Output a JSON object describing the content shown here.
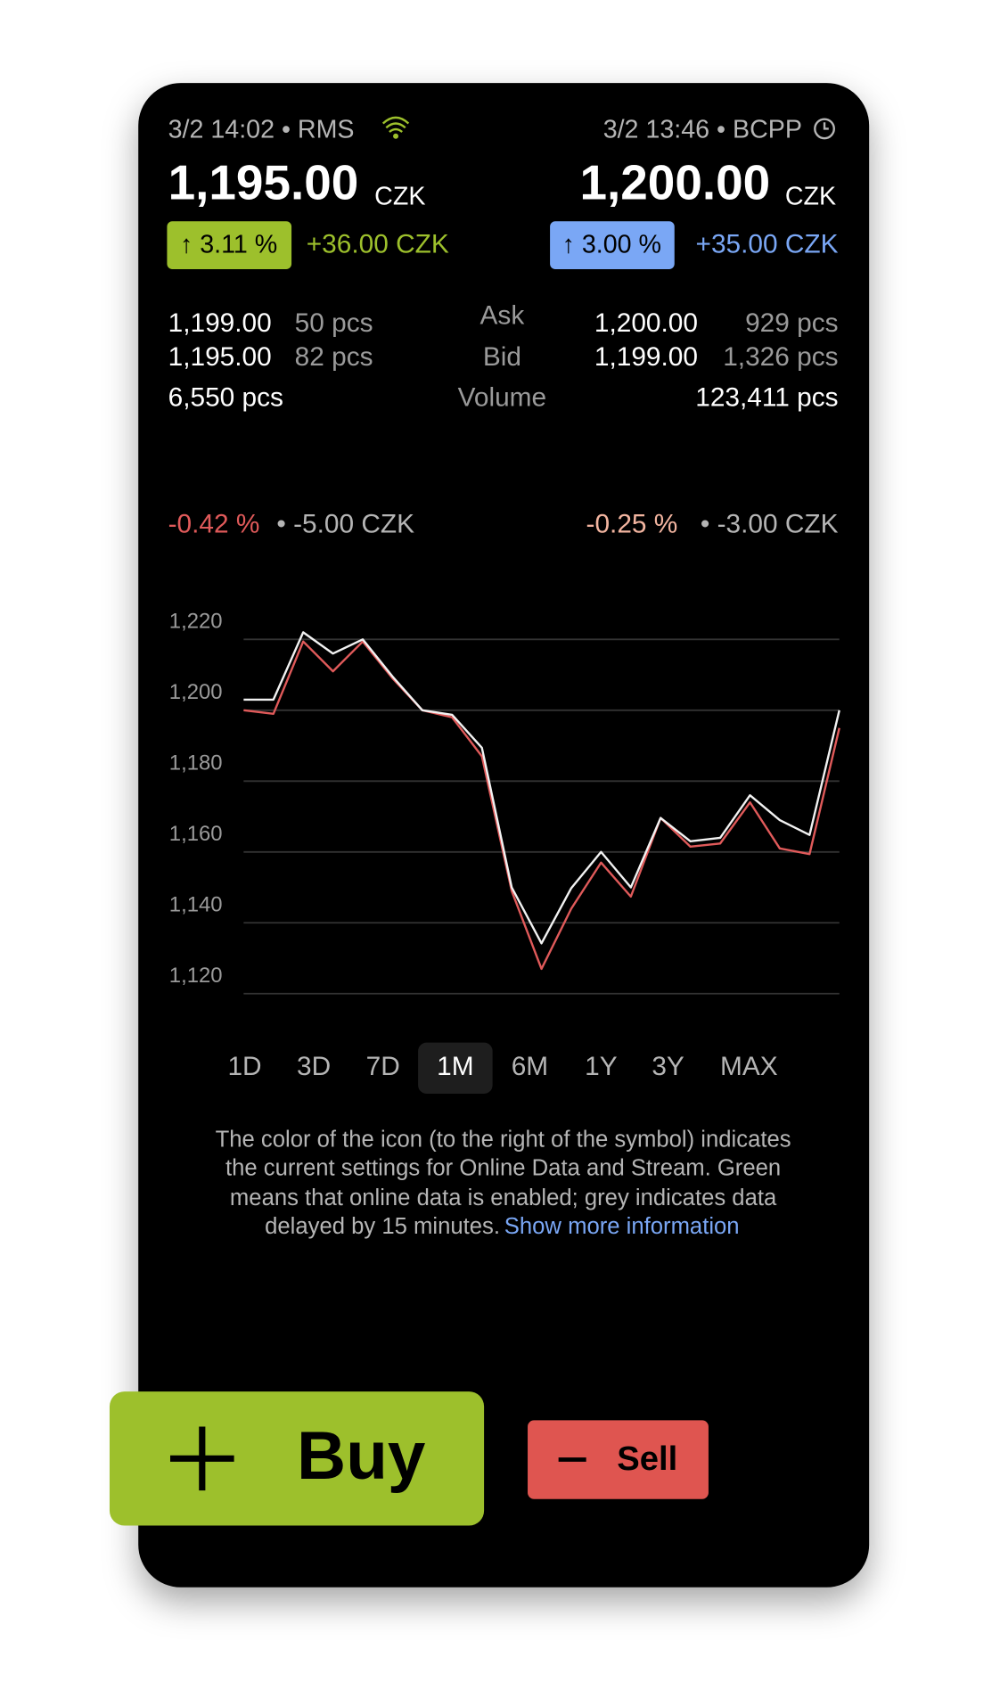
{
  "quotes": [
    {
      "source": "3/2 14:02 • RMS",
      "price": "1,195.00",
      "currency": "CZK",
      "change_pct": "↑ 3.11 %",
      "change_abs": "+36.00 CZK",
      "day_pct": "-0.42 %",
      "day_abs": "• -5.00 CZK"
    },
    {
      "source": "3/2 13:46 • BCPP",
      "price": "1,200.00",
      "currency": "CZK",
      "change_pct": "↑ 3.00 %",
      "change_abs": "+35.00 CZK",
      "day_pct": "-0.25 %",
      "day_abs": "• -3.00 CZK"
    }
  ],
  "order_book": {
    "labels": [
      "Ask",
      "Bid",
      "Volume"
    ],
    "left": [
      [
        "1,199.00",
        "50 pcs"
      ],
      [
        "1,195.00",
        "82 pcs"
      ],
      [
        "6,550 pcs"
      ]
    ],
    "right": [
      [
        "1,200.00",
        "929 pcs"
      ],
      [
        "1,199.00",
        "1,326 pcs"
      ],
      [
        "123,411 pcs"
      ]
    ]
  },
  "chart_data": {
    "type": "line",
    "categories": [
      null,
      null,
      null,
      null,
      null,
      null,
      null,
      null,
      null,
      null,
      null,
      null,
      null,
      null,
      null,
      null,
      null,
      null,
      null,
      null,
      null
    ],
    "series": [
      {
        "color": "#f2f2f2",
        "values": [
          1203,
          1203,
          1222,
          1216,
          1220,
          1209.5,
          1200,
          1198.7,
          1189.4,
          1150,
          1134.2,
          1149.8,
          1160,
          1150,
          1169.6,
          1163,
          1164,
          1176,
          1169,
          1164.8,
          1200
        ]
      },
      {
        "color": "#e05a5a",
        "values": [
          1200,
          1199,
          1219.4,
          1211,
          1219.4,
          1209,
          1200,
          1198,
          1187,
          1149,
          1127,
          1144,
          1157,
          1147.4,
          1169.6,
          1161.5,
          1162.4,
          1174,
          1161,
          1159.4,
          1195
        ]
      }
    ],
    "ylim": [
      1120,
      1220
    ],
    "yticks": [
      {
        "value": 1120,
        "label": "1,120"
      },
      {
        "value": 1140,
        "label": "1,140"
      },
      {
        "value": 1160,
        "label": "1,160"
      },
      {
        "value": 1180,
        "label": "1,180"
      },
      {
        "value": 1200,
        "label": "1,200"
      },
      {
        "value": 1220,
        "label": "1,220"
      }
    ],
    "grid": true
  },
  "periods": {
    "items": [
      "1D",
      "3D",
      "7D",
      "1M",
      "6M",
      "1Y",
      "3Y",
      "MAX"
    ],
    "selected": 3
  },
  "info": {
    "lines": [
      "The color of the icon (to the right of the symbol) indicates",
      "the current settings for Online Data and Stream. Green",
      "means that online data is enabled; grey indicates data",
      "delayed by 15 minutes."
    ],
    "link": "Show more information"
  },
  "actions": {
    "buy": "Buy",
    "sell": "Sell"
  }
}
